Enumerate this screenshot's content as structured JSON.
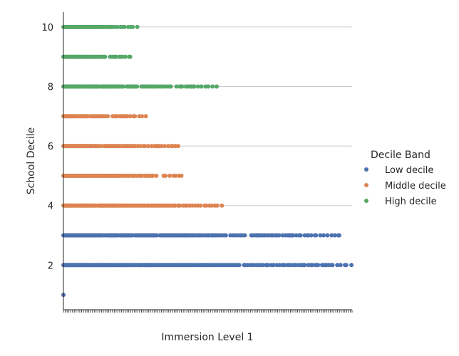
{
  "chart_data": {
    "type": "scatter",
    "title": "",
    "xlabel": "Immersion Level 1",
    "ylabel": "School Decile",
    "ylim": [
      0.5,
      10.5
    ],
    "yticks": [
      "2",
      "4",
      "6",
      "8",
      "10"
    ],
    "grid": "horizontal",
    "legend": {
      "title": "Decile Band",
      "placement": "right",
      "entries": [
        {
          "label": "Low decile",
          "color": "#4c72b0"
        },
        {
          "label": "Middle decile",
          "color": "#dd8452"
        },
        {
          "label": "High decile",
          "color": "#55a868"
        }
      ]
    },
    "series": [
      {
        "name": "Low decile",
        "color": "#4c72b0",
        "y": [
          1,
          2,
          3
        ],
        "x_extent_fraction": [
          0.0,
          1.0,
          0.96
        ]
      },
      {
        "name": "Middle decile",
        "color": "#dd8452",
        "y": [
          4,
          5,
          6,
          7
        ],
        "x_extent_fraction": [
          0.56,
          0.41,
          0.4,
          0.29
        ]
      },
      {
        "name": "High decile",
        "color": "#55a868",
        "y": [
          8,
          9,
          10
        ],
        "x_extent_fraction": [
          0.54,
          0.26,
          0.26
        ]
      }
    ]
  }
}
